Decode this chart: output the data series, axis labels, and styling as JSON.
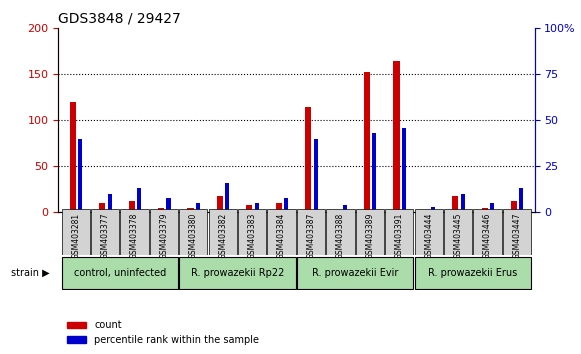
{
  "title": "GDS3848 / 29427",
  "samples": [
    "GSM403281",
    "GSM403377",
    "GSM403378",
    "GSM403379",
    "GSM403380",
    "GSM403382",
    "GSM403383",
    "GSM403384",
    "GSM403387",
    "GSM403388",
    "GSM403389",
    "GSM403391",
    "GSM403444",
    "GSM403445",
    "GSM403446",
    "GSM403447"
  ],
  "count_values": [
    120,
    10,
    12,
    5,
    5,
    18,
    8,
    10,
    115,
    3,
    152,
    165,
    3,
    18,
    5,
    12
  ],
  "percentile_values": [
    40,
    10,
    13,
    8,
    5,
    16,
    5,
    8,
    40,
    4,
    43,
    46,
    3,
    10,
    5,
    13
  ],
  "groups": [
    {
      "label": "control, uninfected",
      "start": 0,
      "end": 4,
      "color": "#ccffcc"
    },
    {
      "label": "R. prowazekii Rp22",
      "start": 4,
      "end": 8,
      "color": "#ccffcc"
    },
    {
      "label": "R. prowazekii Evir",
      "start": 8,
      "end": 12,
      "color": "#ccffcc"
    },
    {
      "label": "R. prowazekii Erus",
      "start": 12,
      "end": 16,
      "color": "#ccffcc"
    }
  ],
  "ylim_left": [
    0,
    200
  ],
  "ylim_right": [
    0,
    100
  ],
  "yticks_left": [
    0,
    50,
    100,
    150,
    200
  ],
  "ytick_labels_left": [
    "0",
    "50",
    "100",
    "150",
    "200"
  ],
  "yticks_right": [
    0,
    25,
    50,
    75,
    100
  ],
  "ytick_labels_right": [
    "0",
    "25",
    "50",
    "75",
    "100%"
  ],
  "bar_width": 0.35,
  "count_color": "#cc0000",
  "percentile_color": "#0000cc",
  "grid_color": "#000000",
  "bg_color": "#ffffff",
  "plot_bg_color": "#ffffff",
  "label_count": "count",
  "label_percentile": "percentile rank within the sample",
  "xlabel_strain": "strain",
  "group_bg_color": "#aaddaa"
}
